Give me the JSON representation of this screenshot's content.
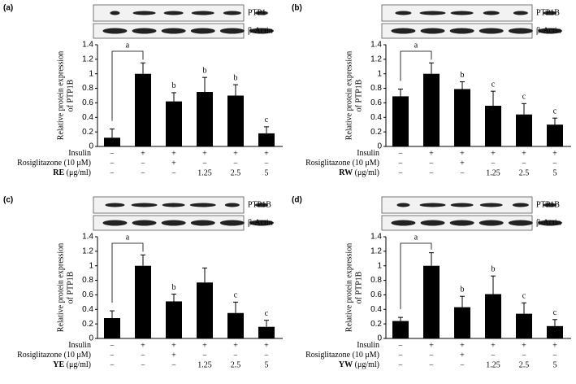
{
  "chart_data": [
    {
      "type": "bar",
      "panel_label": "(a)",
      "blot_labels": [
        "PTP1",
        "β-Actin"
      ],
      "ylabel": [
        "Relative protein expression",
        "of PTP1B"
      ],
      "ylim": [
        0,
        1.4
      ],
      "yticks": [
        0,
        0.2,
        0.4,
        0.6,
        0.8,
        1,
        1.2,
        1.4
      ],
      "color": "#000000",
      "values": [
        0.12,
        1.0,
        0.62,
        0.75,
        0.7,
        0.18
      ],
      "errors": [
        0.12,
        0.15,
        0.12,
        0.2,
        0.15,
        0.09
      ],
      "significance": [
        null,
        "a",
        "b",
        "b",
        "b",
        "c"
      ],
      "treatments": [
        {
          "label": "Insulin",
          "cells": [
            "−",
            "+",
            "+",
            "+",
            "+",
            "+"
          ]
        },
        {
          "label": "Rosiglitazone (10 μM)",
          "cells": [
            "−",
            "−",
            "+",
            "−",
            "−",
            "−"
          ]
        },
        {
          "label": "RE",
          "unit": "(μg/ml)",
          "cells": [
            "−",
            "−",
            "−",
            "1.25",
            "2.5",
            "5"
          ]
        }
      ]
    },
    {
      "type": "bar",
      "panel_label": "(b)",
      "blot_labels": [
        "PTP1B",
        "β-Actin"
      ],
      "ylabel": [
        "Relative protein expression",
        "of PTP1B"
      ],
      "ylim": [
        0,
        1.4
      ],
      "yticks": [
        0,
        0.2,
        0.4,
        0.6,
        0.8,
        1,
        1.2,
        1.4
      ],
      "color": "#000000",
      "values": [
        0.69,
        1.0,
        0.79,
        0.56,
        0.44,
        0.3
      ],
      "errors": [
        0.1,
        0.15,
        0.1,
        0.2,
        0.15,
        0.09
      ],
      "significance": [
        null,
        "a",
        "b",
        "c",
        "c",
        "c"
      ],
      "treatments": [
        {
          "label": "Insulin",
          "cells": [
            "−",
            "+",
            "+",
            "+",
            "+",
            "+"
          ]
        },
        {
          "label": "Rosiglitazone (10 μM)",
          "cells": [
            "−",
            "−",
            "+",
            "−",
            "−",
            "−"
          ]
        },
        {
          "label": "RW",
          "unit": "(μg/ml)",
          "cells": [
            "−",
            "−",
            "−",
            "1.25",
            "2.5",
            "5"
          ]
        }
      ]
    },
    {
      "type": "bar",
      "panel_label": "(c)",
      "blot_labels": [
        "PTP1B",
        "β-Actin"
      ],
      "ylabel": [
        "Relative protein expression",
        "of PTP1B"
      ],
      "ylim": [
        0,
        1.4
      ],
      "yticks": [
        0,
        0.2,
        0.4,
        0.6,
        0.8,
        1,
        1.2,
        1.4
      ],
      "color": "#000000",
      "values": [
        0.28,
        1.0,
        0.51,
        0.77,
        0.35,
        0.16
      ],
      "errors": [
        0.1,
        0.15,
        0.1,
        0.2,
        0.15,
        0.09
      ],
      "significance": [
        null,
        "a",
        "b",
        null,
        "c",
        "c"
      ],
      "treatments": [
        {
          "label": "Insulin",
          "cells": [
            "−",
            "+",
            "+",
            "+",
            "+",
            "+"
          ]
        },
        {
          "label": "Rosiglitazone (10 μM)",
          "cells": [
            "−",
            "−",
            "+",
            "−",
            "−",
            "−"
          ]
        },
        {
          "label": "YE",
          "unit": "(μg/ml)",
          "cells": [
            "−",
            "−",
            "−",
            "1.25",
            "2.5",
            "5"
          ]
        }
      ]
    },
    {
      "type": "bar",
      "panel_label": "(d)",
      "blot_labels": [
        "PTP1B",
        "β-Actin"
      ],
      "ylabel": [
        "Relative protein expression",
        "of PTP1B"
      ],
      "ylim": [
        0,
        1.4
      ],
      "yticks": [
        0,
        0.2,
        0.4,
        0.6,
        0.8,
        1,
        1.2,
        1.4
      ],
      "color": "#000000",
      "values": [
        0.24,
        1.0,
        0.43,
        0.61,
        0.34,
        0.17
      ],
      "errors": [
        0.05,
        0.18,
        0.15,
        0.25,
        0.15,
        0.09
      ],
      "significance": [
        null,
        "a",
        "b",
        "b",
        "c",
        "c"
      ],
      "treatments": [
        {
          "label": "Insulin",
          "cells": [
            "−",
            "+",
            "+",
            "+",
            "+",
            "+"
          ]
        },
        {
          "label": "Rosiglitazone (10 μM)",
          "cells": [
            "−",
            "−",
            "+",
            "−",
            "−",
            "−"
          ]
        },
        {
          "label": "YW",
          "unit": "(μg/ml)",
          "cells": [
            "−",
            "−",
            "−",
            "1.25",
            "2.5",
            "5"
          ]
        }
      ]
    }
  ]
}
